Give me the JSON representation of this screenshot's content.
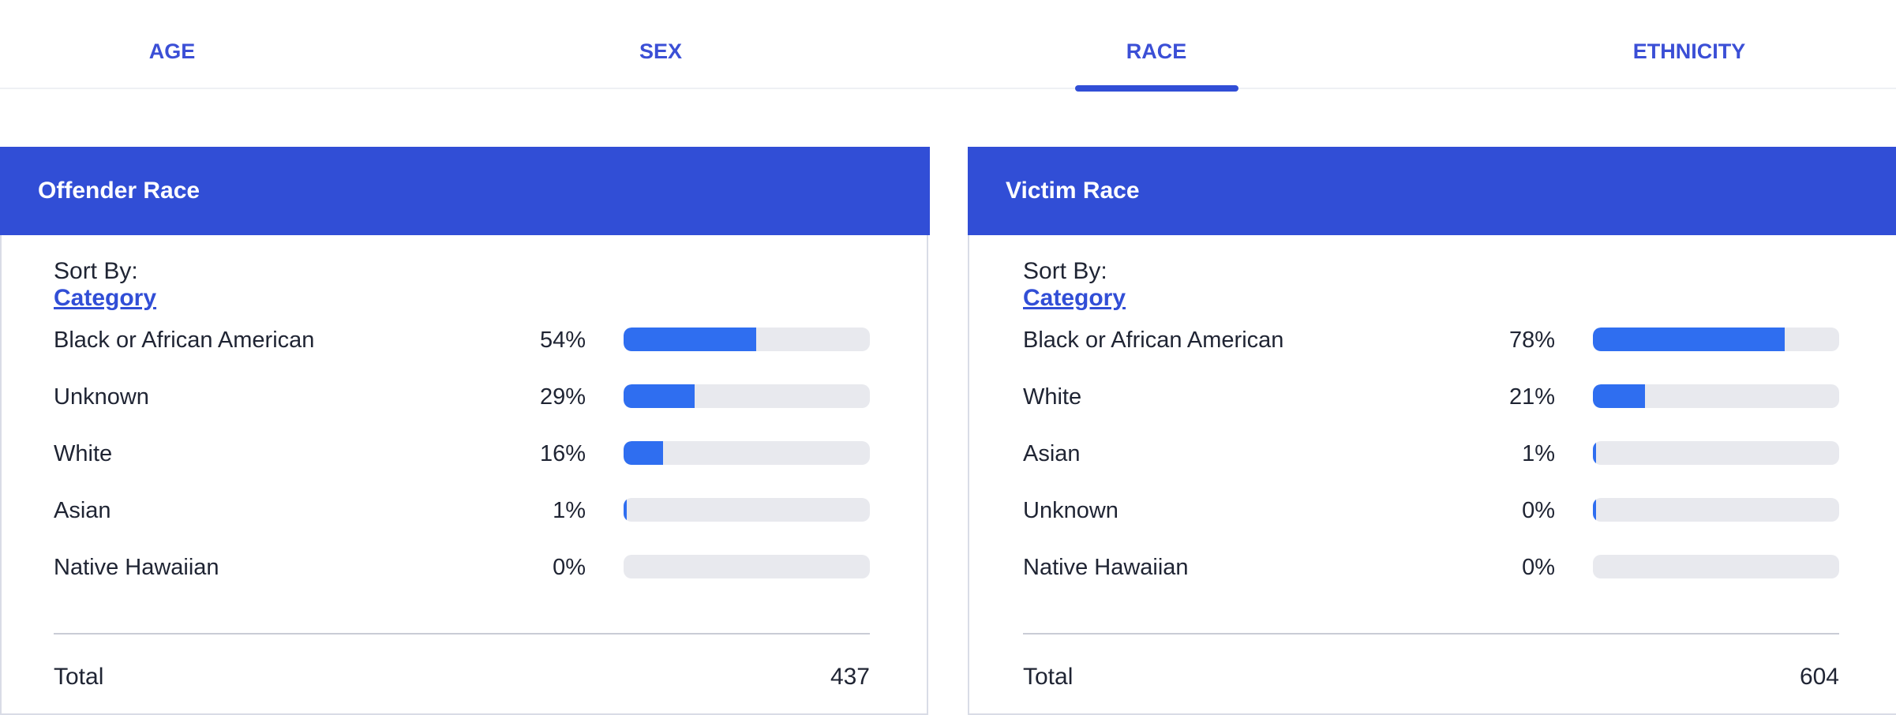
{
  "tabs": [
    {
      "label": "AGE"
    },
    {
      "label": "SEX"
    },
    {
      "label": "RACE",
      "active": true
    },
    {
      "label": "ETHNICITY"
    }
  ],
  "colors": {
    "accent": "#314ed6",
    "bar": "#2f6ef0",
    "track": "#e8e9ee"
  },
  "panels": [
    {
      "title": "Offender Race",
      "sort_prefix": "Sort By:",
      "sort_value": "Category",
      "rows": [
        {
          "label": "Black or African American",
          "pct_text": "54%",
          "value": 54
        },
        {
          "label": "Unknown",
          "pct_text": "29%",
          "value": 29
        },
        {
          "label": "White",
          "pct_text": "16%",
          "value": 16
        },
        {
          "label": "Asian",
          "pct_text": "1%",
          "value": 1
        },
        {
          "label": "Native Hawaiian",
          "pct_text": "0%",
          "value": 0
        }
      ],
      "total_label": "Total",
      "total_value": "437"
    },
    {
      "title": "Victim Race",
      "sort_prefix": "Sort By:",
      "sort_value": "Category",
      "rows": [
        {
          "label": "Black or African American",
          "pct_text": "78%",
          "value": 78
        },
        {
          "label": "White",
          "pct_text": "21%",
          "value": 21
        },
        {
          "label": "Asian",
          "pct_text": "1%",
          "value": 1
        },
        {
          "label": "Unknown",
          "pct_text": "0%",
          "value": 0.5
        },
        {
          "label": "Native Hawaiian",
          "pct_text": "0%",
          "value": 0
        }
      ],
      "total_label": "Total",
      "total_value": "604"
    }
  ]
}
